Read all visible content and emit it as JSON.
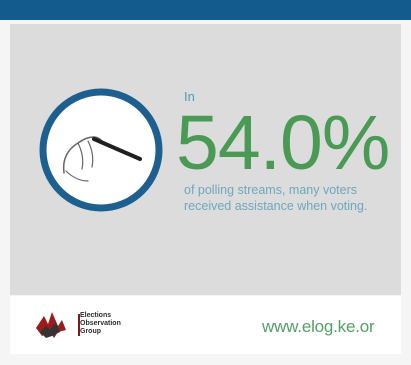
{
  "main": {
    "prefix": "In",
    "stat": "54.0%",
    "description": "of polling streams, many voters received assistance when voting."
  },
  "footer": {
    "logo_text": [
      "Elections",
      "Observation",
      "Group"
    ],
    "website": "www.elog.ke.or"
  },
  "colors": {
    "top_bar": "#145b8d",
    "panel": "#dcdcdc",
    "stat": "#4a9a56",
    "circle_ring": "#1d5f8e",
    "website": "#53a069"
  },
  "icons": {
    "circle": "hand-with-pen-icon",
    "logo": "elog-logo-icon"
  }
}
